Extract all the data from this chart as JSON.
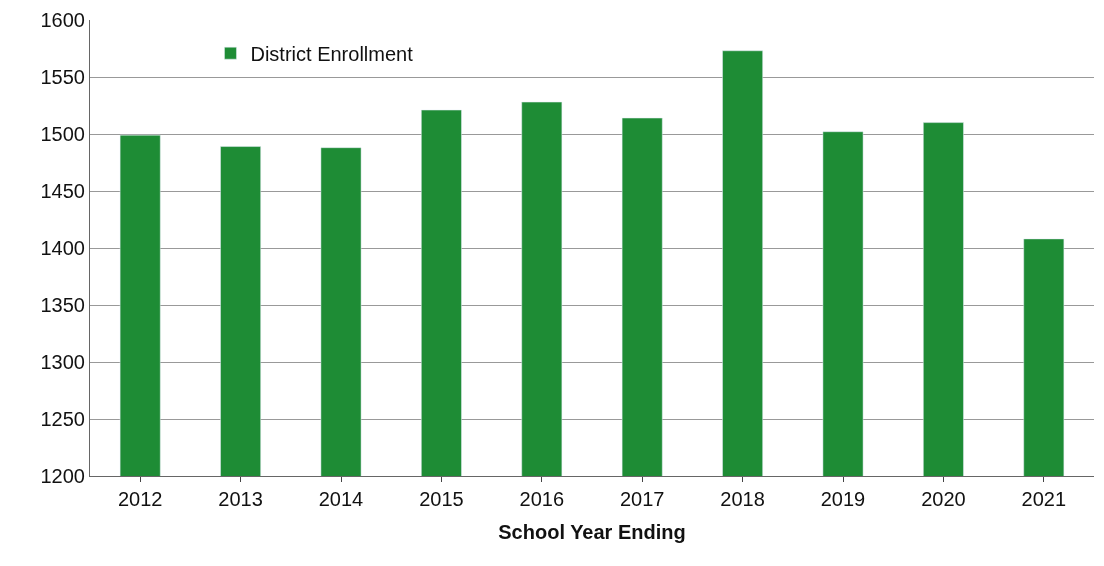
{
  "chart_data": {
    "type": "bar",
    "xlabel": "School Year Ending",
    "categories": [
      "2012",
      "2013",
      "2014",
      "2015",
      "2016",
      "2017",
      "2018",
      "2019",
      "2020",
      "2021"
    ],
    "series": [
      {
        "name": "District Enrollment",
        "color": "#1e8c35",
        "values": [
          1499,
          1489,
          1488,
          1521,
          1528,
          1514,
          1573,
          1502,
          1510,
          1408
        ]
      }
    ],
    "ylim": [
      1200,
      1600
    ],
    "yticks": [
      1200,
      1250,
      1300,
      1350,
      1400,
      1450,
      1500,
      1550,
      1600
    ],
    "grid": "y",
    "legend": "top left"
  }
}
